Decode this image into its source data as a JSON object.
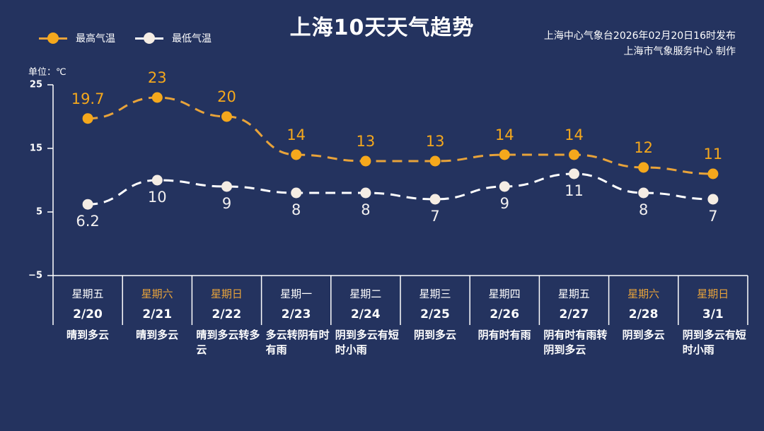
{
  "title": "上海10天天气趋势",
  "legend": [
    {
      "label": "最高气温",
      "color": "#f5a81c"
    },
    {
      "label": "最低气温",
      "color": "#f5ede4"
    }
  ],
  "source": {
    "line1": "上海中心气象台2026年02月20日16时发布",
    "line2": "上海市气象服务中心 制作"
  },
  "unit_label": "单位：℃",
  "colors": {
    "background": "#24335f",
    "high": "#f5a81c",
    "low": "#f5ede4",
    "weekend": "#e8a33a"
  },
  "chart_data": {
    "type": "line",
    "title": "上海10天天气趋势",
    "xlabel": "",
    "ylabel": "单位：℃",
    "ylim": [
      -5,
      25
    ],
    "yticks": [
      25,
      15,
      5,
      -5
    ],
    "grid": false,
    "legend_position": "top-left",
    "categories": [
      "2/20",
      "2/21",
      "2/22",
      "2/23",
      "2/24",
      "2/25",
      "2/26",
      "2/27",
      "2/28",
      "3/1"
    ],
    "weekdays": [
      "星期五",
      "星期六",
      "星期日",
      "星期一",
      "星期二",
      "星期三",
      "星期四",
      "星期五",
      "星期六",
      "星期日"
    ],
    "weekend": [
      false,
      true,
      true,
      false,
      false,
      false,
      false,
      false,
      true,
      true
    ],
    "weather": [
      "晴到多云",
      "晴到多云",
      "晴到多云转多云",
      "多云转阴有时有雨",
      "阴到多云有短时小雨",
      "阴到多云",
      "阴有时有雨",
      "阴有时有雨转阴到多云",
      "阴到多云",
      "阴到多云有短时小雨"
    ],
    "series": [
      {
        "name": "最高气温",
        "values": [
          19.7,
          23,
          20,
          14,
          13,
          13,
          14,
          14,
          12,
          11
        ],
        "labels": [
          "19.7",
          "23",
          "20",
          "14",
          "13",
          "13",
          "14",
          "14",
          "12",
          "11"
        ]
      },
      {
        "name": "最低气温",
        "values": [
          6.2,
          10,
          9,
          8,
          8,
          7,
          9,
          11,
          8,
          7
        ],
        "labels": [
          "6.2",
          "10",
          "9",
          "8",
          "8",
          "7",
          "9",
          "11",
          "8",
          "7"
        ]
      }
    ]
  }
}
